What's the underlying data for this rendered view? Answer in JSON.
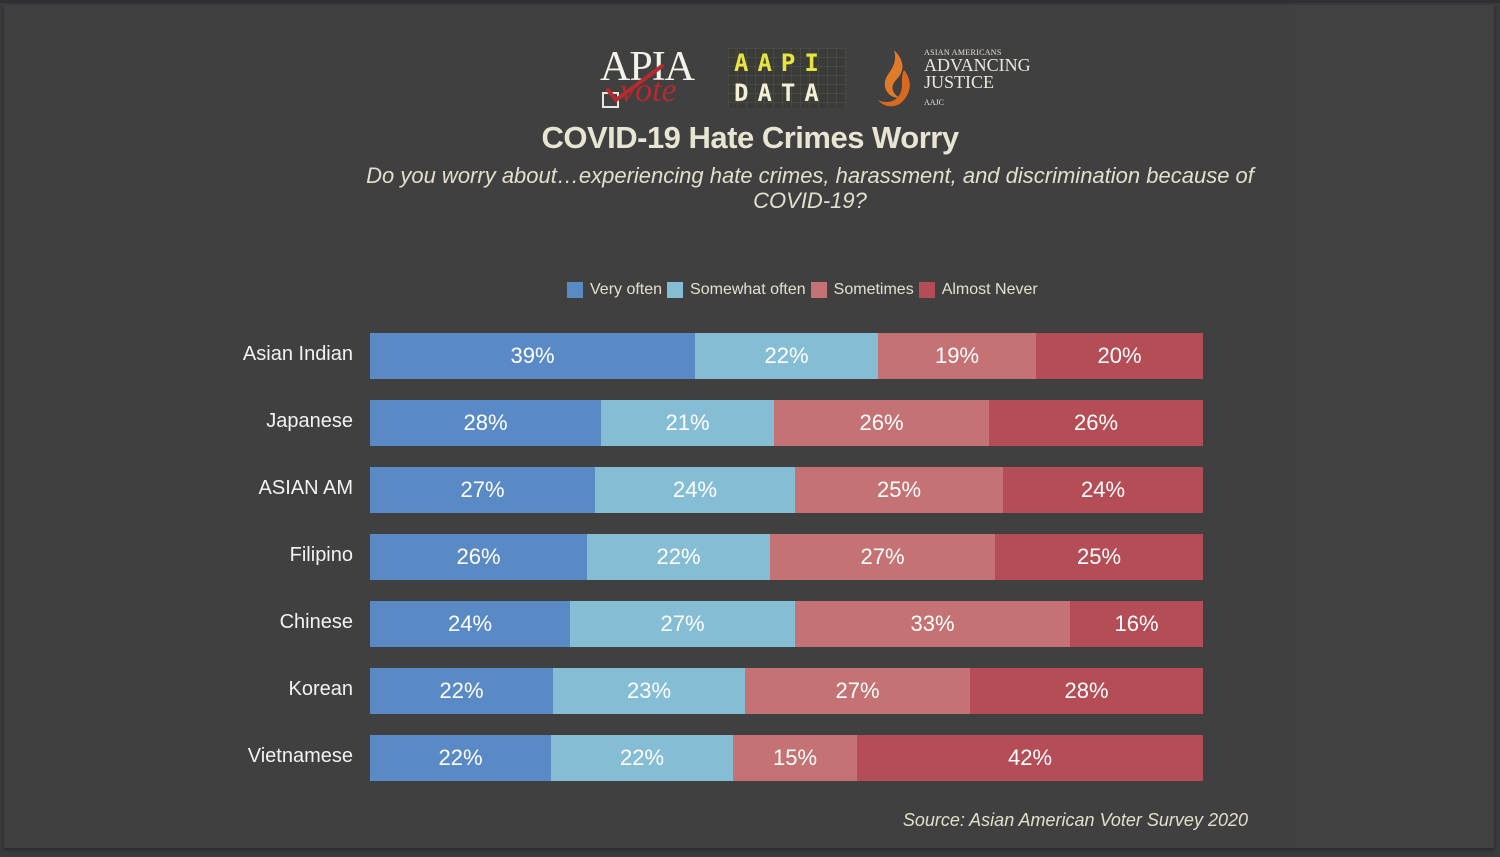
{
  "logos": {
    "apia_vote": {
      "top": "APIA",
      "bottom": "vote"
    },
    "aapi_data": {
      "line1": "AAPI",
      "line2": "DATA"
    },
    "aajc": {
      "small": "ASIAN AMERICANS",
      "line1": "ADVANCING",
      "line2": "JUSTICE",
      "foot": "AAJC"
    }
  },
  "chart_data": {
    "type": "bar",
    "orientation": "horizontal",
    "stacked": true,
    "title": "COVID-19 Hate Crimes Worry",
    "subtitle": "Do you worry about…experiencing hate crimes, harassment, and discrimination because of COVID-19?",
    "xlabel": "",
    "ylabel": "",
    "legend_position": "top",
    "grid": false,
    "categories": [
      "Asian Indian",
      "Japanese",
      "ASIAN AM",
      "Filipino",
      "Chinese",
      "Korean",
      "Vietnamese"
    ],
    "series": [
      {
        "name": "Very often",
        "color": "#5a8ac6",
        "values": [
          39,
          28,
          27,
          26,
          24,
          22,
          22
        ]
      },
      {
        "name": "Somewhat often",
        "color": "#85bdd5",
        "values": [
          22,
          21,
          24,
          22,
          27,
          23,
          22
        ]
      },
      {
        "name": "Sometimes",
        "color": "#c47273",
        "values": [
          19,
          26,
          25,
          27,
          33,
          27,
          15
        ]
      },
      {
        "name": "Almost Never",
        "color": "#b44d55",
        "values": [
          20,
          26,
          24,
          25,
          16,
          28,
          42
        ]
      }
    ],
    "value_suffix": "%",
    "normalized_to_100": true,
    "source": "Source: Asian American Voter Survey 2020"
  }
}
